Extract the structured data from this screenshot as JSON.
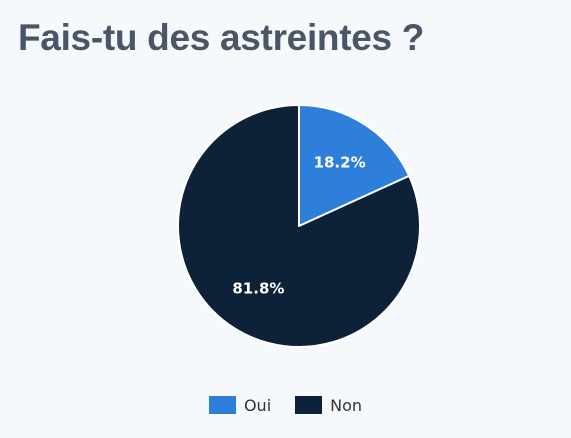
{
  "chart_data": {
    "type": "pie",
    "title": "Fais-tu des astreintes ?",
    "categories": [
      "Oui",
      "Non"
    ],
    "values": [
      18.2,
      81.8
    ],
    "data_labels": [
      "18.2%",
      "81.8%"
    ],
    "colors": [
      "#2e7fd9",
      "#0d2238"
    ],
    "legend_position": "bottom"
  }
}
